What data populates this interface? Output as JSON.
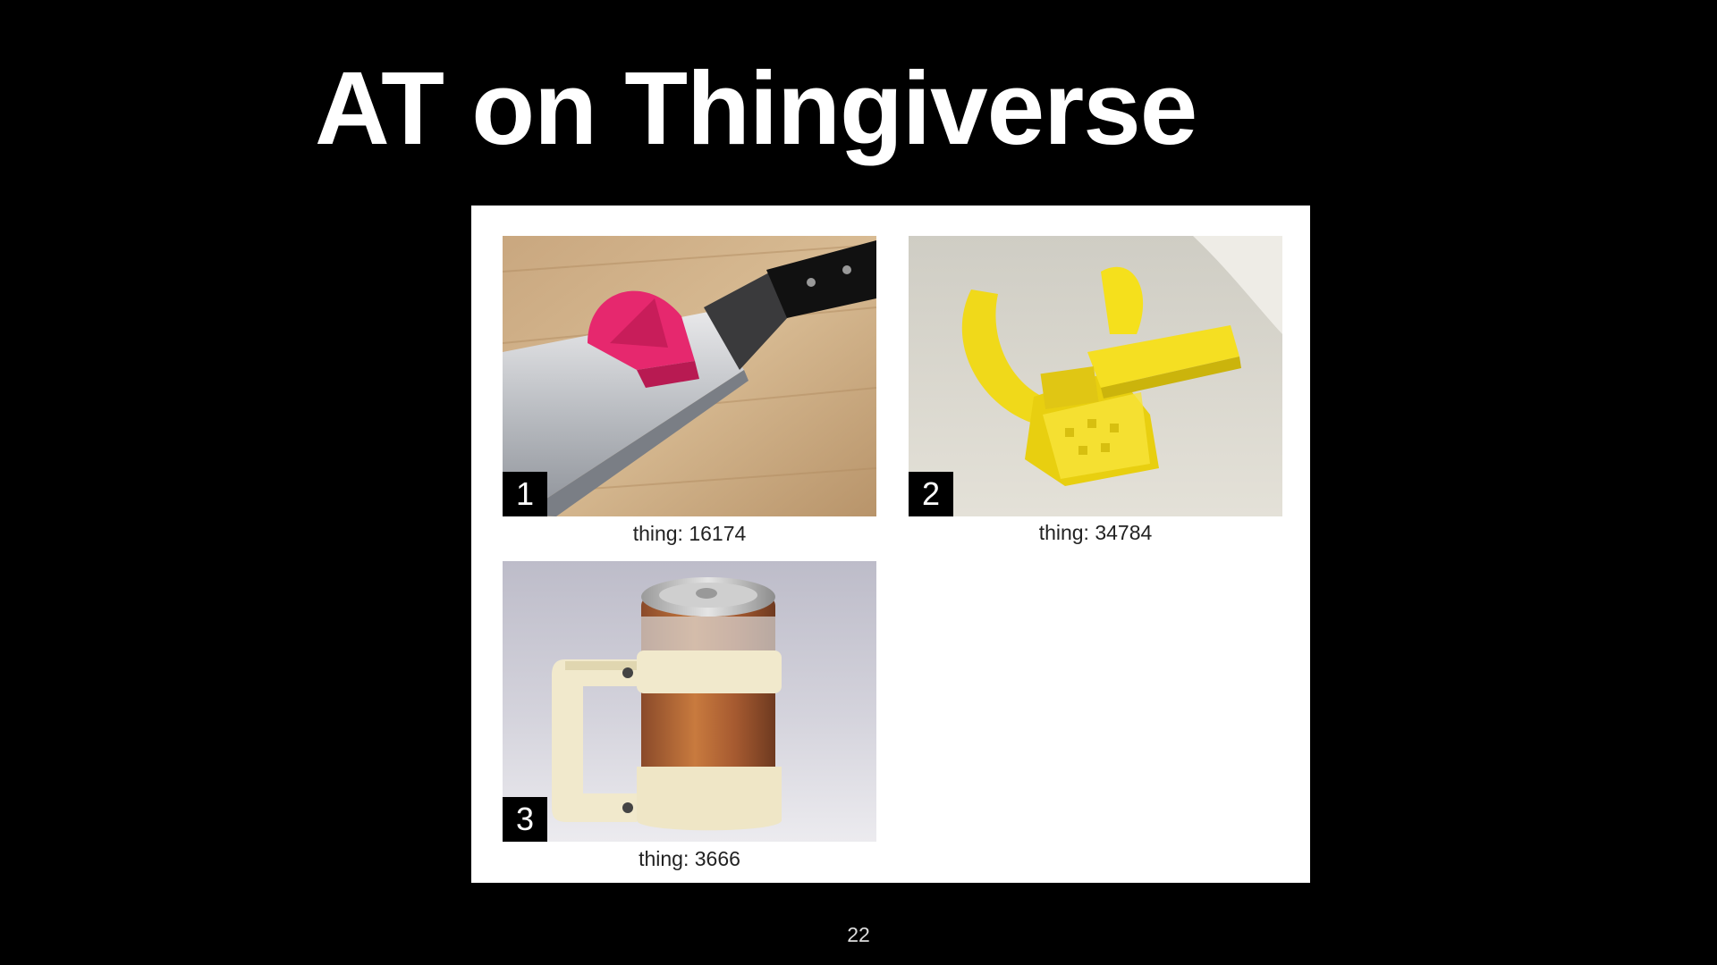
{
  "slide": {
    "title": "AT on Thingiverse",
    "page_number": "22"
  },
  "figure": {
    "panels": [
      {
        "badge": "1",
        "caption": "thing: 16174",
        "subject": "pink knife guide on chef knife"
      },
      {
        "badge": "2",
        "caption": "thing: 34784",
        "subject": "yellow 3D-printed hand brace"
      },
      {
        "badge": "3",
        "caption": "thing: 3666",
        "subject": "cream can holder with handle"
      }
    ]
  },
  "colors": {
    "background": "#000000",
    "title": "#ffffff",
    "panel": "#ffffff",
    "pink_part": "#e6286e",
    "yellow_part": "#f5e01c",
    "cream_part": "#f1e9cc"
  }
}
